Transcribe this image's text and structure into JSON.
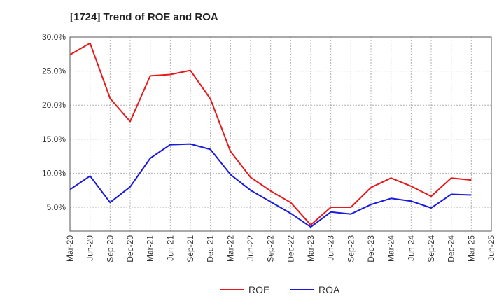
{
  "chart_data": {
    "type": "line",
    "title": "[1724]  Trend of ROE and ROA",
    "xlabel": "",
    "ylabel": "",
    "categories": [
      "Mar-20",
      "Jun-20",
      "Sep-20",
      "Dec-20",
      "Mar-21",
      "Jun-21",
      "Sep-21",
      "Dec-21",
      "Mar-22",
      "Jun-22",
      "Sep-22",
      "Dec-22",
      "Mar-23",
      "Jun-23",
      "Sep-23",
      "Dec-23",
      "Mar-24",
      "Jun-24",
      "Sep-24",
      "Dec-24",
      "Mar-25",
      "Jun-25"
    ],
    "y_ticks": [
      "30.0%",
      "25.0%",
      "20.0%",
      "15.0%",
      "10.0%",
      "5.0%"
    ],
    "ylim": [
      1.5,
      30.0
    ],
    "grid": true,
    "legend_position": "bottom-center",
    "series": [
      {
        "name": "ROE",
        "color": "#e8191a",
        "values": [
          27.4,
          29.1,
          21.0,
          17.6,
          24.3,
          24.5,
          25.1,
          20.9,
          13.2,
          9.4,
          7.4,
          5.7,
          2.4,
          5.0,
          5.0,
          7.9,
          9.3,
          8.1,
          6.6,
          9.3,
          9.0,
          null
        ]
      },
      {
        "name": "ROA",
        "color": "#1a1adb",
        "values": [
          7.6,
          9.6,
          5.7,
          8.0,
          12.2,
          14.2,
          14.3,
          13.5,
          9.8,
          7.5,
          5.8,
          4.1,
          2.1,
          4.3,
          4.0,
          5.4,
          6.3,
          5.9,
          4.9,
          6.9,
          6.8,
          null
        ]
      }
    ]
  }
}
